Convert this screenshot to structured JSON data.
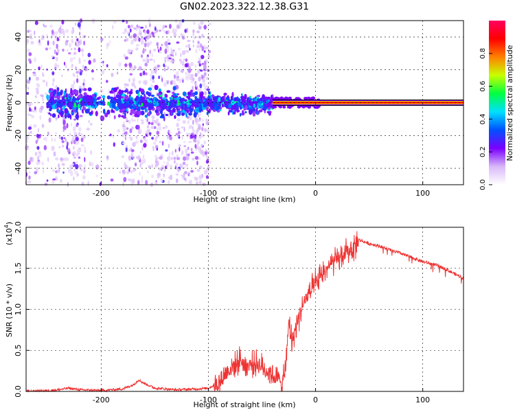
{
  "figure_title": "GN02.2023.322.12.38.G31",
  "chart_data": [
    {
      "type": "heatmap",
      "title": "GN02.2023.322.12.38.G31",
      "xlabel": "Height of straight line (km)",
      "ylabel": "Frequency (Hz)",
      "xlim": [
        -270,
        138
      ],
      "ylim": [
        -50,
        50
      ],
      "xticks": [
        -200,
        -100,
        0,
        100
      ],
      "yticks": [
        -40,
        -20,
        0,
        20,
        40
      ],
      "colorbar": {
        "label": "Normalized spectral amplitude",
        "range": [
          0,
          1
        ],
        "ticks": [
          0.0,
          0.2,
          0.4,
          0.6,
          0.8
        ],
        "colors": [
          "#ffffff",
          "#d8b8f8",
          "#7b00ff",
          "#0050ff",
          "#00e0ff",
          "#00ff40",
          "#c8ff00",
          "#ff8000",
          "#ff0000",
          "#ff0060"
        ]
      },
      "features": [
        {
          "name": "scatter_band_left",
          "x_range": [
            -270,
            -100
          ],
          "freq_range": [
            -50,
            50
          ],
          "amplitude": 0.1
        },
        {
          "name": "core_band",
          "x_range": [
            -250,
            -40
          ],
          "freq_center": 0,
          "amplitude": 0.35
        },
        {
          "name": "carrier_line",
          "x_range": [
            -40,
            138
          ],
          "freq": 0,
          "amplitude": 0.9
        }
      ]
    },
    {
      "type": "line",
      "xlabel": "Height of straight line (km)",
      "ylabel": "SNR (10 * v/v)",
      "scale_label": "(x10",
      "scale_exp": "4",
      "scale_close": ")",
      "xlim": [
        -270,
        138
      ],
      "ylim": [
        0,
        2.0
      ],
      "xticks": [
        -200,
        -100,
        0,
        100
      ],
      "yticks": [
        "0.0",
        "0.5",
        "1.0",
        "1.5",
        "2.0"
      ],
      "color": "#ee3333",
      "series": [
        {
          "name": "SNR",
          "x": [
            -270,
            -250,
            -240,
            -230,
            -220,
            -200,
            -180,
            -170,
            -165,
            -160,
            -150,
            -130,
            -110,
            -100,
            -90,
            -85,
            -80,
            -75,
            -70,
            -65,
            -60,
            -55,
            -50,
            -45,
            -40,
            -35,
            -30,
            -27,
            -25,
            -22,
            -20,
            -15,
            -10,
            -5,
            0,
            5,
            10,
            15,
            20,
            25,
            30,
            35,
            38,
            40,
            50,
            60,
            70,
            80,
            90,
            100,
            110,
            120,
            130,
            138
          ],
          "y": [
            0.0,
            0.01,
            0.02,
            0.04,
            0.02,
            0.01,
            0.03,
            0.08,
            0.14,
            0.1,
            0.04,
            0.02,
            0.03,
            0.04,
            0.1,
            0.2,
            0.28,
            0.32,
            0.4,
            0.3,
            0.33,
            0.35,
            0.3,
            0.25,
            0.2,
            0.15,
            0.12,
            0.4,
            0.85,
            0.6,
            0.7,
            0.95,
            1.1,
            1.2,
            1.3,
            1.4,
            1.5,
            1.55,
            1.6,
            1.65,
            1.7,
            1.75,
            1.8,
            1.85,
            1.8,
            1.77,
            1.72,
            1.68,
            1.63,
            1.58,
            1.55,
            1.5,
            1.43,
            1.38
          ]
        }
      ]
    }
  ]
}
